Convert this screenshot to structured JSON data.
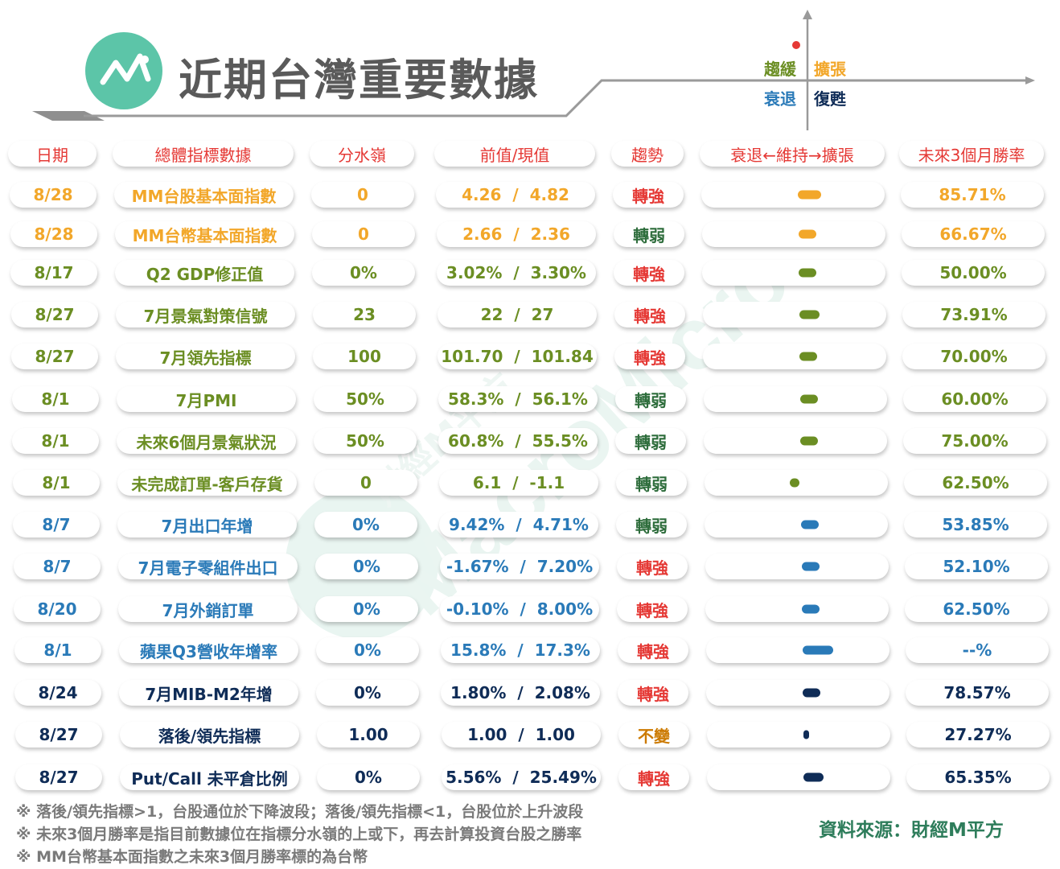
{
  "header": {
    "title": "近期台灣重要數據",
    "logo_icon": "line-chart-icon"
  },
  "quadrant": {
    "q1": "趨緩",
    "q2": "擴張",
    "q3": "衰退",
    "q4": "復甦",
    "marker_color": "#e53935"
  },
  "columns": [
    "日期",
    "總體指標數據",
    "分水嶺",
    "前值/現值",
    "趨勢",
    "衰退←維持→擴張",
    "未來3個月勝率"
  ],
  "rows": [
    {
      "date": "8/28",
      "name": "MM台股基本面指數",
      "threshold": "0",
      "prev": "4.26",
      "curr": "4.82",
      "trend": "轉強",
      "winrate": "85.71%",
      "color": "#f2a72a",
      "trend_color": "#e53935",
      "bar_level": 0.07
    },
    {
      "date": "8/28",
      "name": "MM台幣基本面指數",
      "threshold": "0",
      "prev": "2.66",
      "curr": "2.36",
      "trend": "轉弱",
      "winrate": "66.67%",
      "color": "#f2a72a",
      "trend_color": "#2e6d3c",
      "bar_level": 0.03
    },
    {
      "date": "8/17",
      "name": "Q2 GDP修正值",
      "threshold": "0%",
      "prev": "3.02%",
      "curr": "3.30%",
      "trend": "轉強",
      "winrate": "50.00%",
      "color": "#6b8e23",
      "trend_color": "#e53935",
      "bar_level": 0.03
    },
    {
      "date": "8/27",
      "name": "7月景氣對策信號",
      "threshold": "23",
      "prev": "22",
      "curr": "27",
      "trend": "轉強",
      "winrate": "73.91%",
      "color": "#6b8e23",
      "trend_color": "#e53935",
      "bar_level": 0.06
    },
    {
      "date": "8/27",
      "name": "7月領先指標",
      "threshold": "100",
      "prev": "101.70",
      "curr": "101.84",
      "trend": "轉強",
      "winrate": "70.00%",
      "color": "#6b8e23",
      "trend_color": "#e53935",
      "bar_level": 0.03
    },
    {
      "date": "8/1",
      "name": "7月PMI",
      "threshold": "50%",
      "prev": "58.3%",
      "curr": "56.1%",
      "trend": "轉弱",
      "winrate": "60.00%",
      "color": "#6b8e23",
      "trend_color": "#2e6d3c",
      "bar_level": 0.03
    },
    {
      "date": "8/1",
      "name": "未來6個月景氣狀況",
      "threshold": "50%",
      "prev": "60.8%",
      "curr": "55.5%",
      "trend": "轉弱",
      "winrate": "75.00%",
      "color": "#6b8e23",
      "trend_color": "#2e6d3c",
      "bar_level": 0.03
    },
    {
      "date": "8/1",
      "name": "未完成訂單-客戶存貨",
      "threshold": "0",
      "prev": "6.1",
      "curr": "-1.1",
      "trend": "轉弱",
      "winrate": "62.50%",
      "color": "#6b8e23",
      "trend_color": "#2e6d3c",
      "bar_level": -0.03
    },
    {
      "date": "8/7",
      "name": "7月出口年增",
      "threshold": "0%",
      "prev": "9.42%",
      "curr": "4.71%",
      "trend": "轉弱",
      "winrate": "53.85%",
      "color": "#2a7ab8",
      "trend_color": "#2e6d3c",
      "bar_level": 0.03
    },
    {
      "date": "8/7",
      "name": "7月電子零組件出口",
      "threshold": "0%",
      "prev": "-1.67%",
      "curr": "7.20%",
      "trend": "轉強",
      "winrate": "52.10%",
      "color": "#2a7ab8",
      "trend_color": "#e53935",
      "bar_level": 0.03
    },
    {
      "date": "8/20",
      "name": "7月外銷訂單",
      "threshold": "0%",
      "prev": "-0.10%",
      "curr": "8.00%",
      "trend": "轉強",
      "winrate": "62.50%",
      "color": "#2a7ab8",
      "trend_color": "#e53935",
      "bar_level": 0.04
    },
    {
      "date": "8/1",
      "name": "蘋果Q3營收年增率",
      "threshold": "0%",
      "prev": "15.8%",
      "curr": "17.3%",
      "trend": "轉強",
      "winrate": "--%",
      "color": "#2a7ab8",
      "trend_color": "#e53935",
      "bar_level": 0.09
    },
    {
      "date": "8/24",
      "name": "7月MIB-M2年增",
      "threshold": "0%",
      "prev": "1.80%",
      "curr": "2.08%",
      "trend": "轉強",
      "winrate": "78.57%",
      "color": "#0f2c57",
      "trend_color": "#e53935",
      "bar_level": 0.05
    },
    {
      "date": "8/27",
      "name": "落後/領先指標",
      "threshold": "1.00",
      "prev": "1.00",
      "curr": "1.00",
      "trend": "不變",
      "winrate": "27.27%",
      "color": "#0f2c57",
      "trend_color": "#cc7a00",
      "bar_level": 0.0
    },
    {
      "date": "8/27",
      "name": "Put/Call 未平倉比例",
      "threshold": "0%",
      "prev": "5.56%",
      "curr": "25.49%",
      "trend": "轉強",
      "winrate": "65.35%",
      "color": "#0f2c57",
      "trend_color": "#e53935",
      "bar_level": 0.06
    }
  ],
  "footnotes": [
    "※ 落後/領先指標>1，台股通位於下降波段；落後/領先指標<1，台股位於上升波段",
    "※ 未來3個月勝率是指目前數據位在指標分水嶺的上或下，再去計算投資台股之勝率",
    "※ MM台幣基本面指數之未來3個月勝率標的為台幣"
  ],
  "source": "資料來源：財經M平方",
  "watermark": {
    "text": "MacroMicro",
    "cn": "財經M平方"
  }
}
